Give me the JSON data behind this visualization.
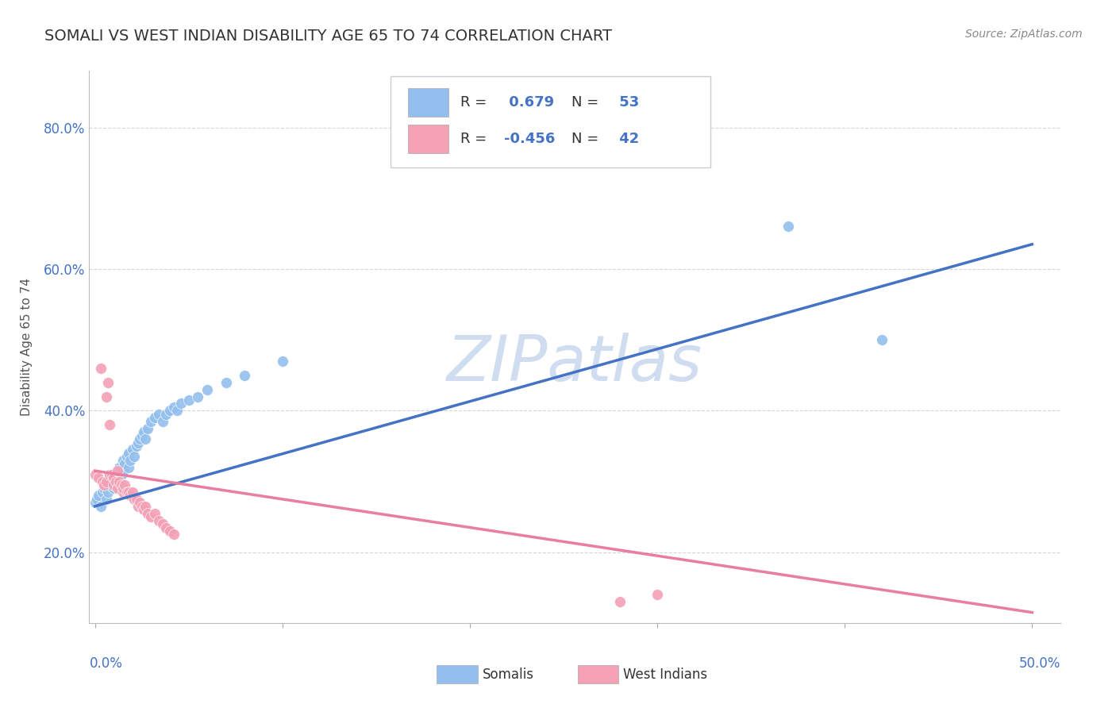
{
  "title": "SOMALI VS WEST INDIAN DISABILITY AGE 65 TO 74 CORRELATION CHART",
  "source_text": "Source: ZipAtlas.com",
  "ylabel": "Disability Age 65 to 74",
  "ylim": [
    0.1,
    0.88
  ],
  "xlim": [
    -0.003,
    0.515
  ],
  "somali_R": 0.679,
  "somali_N": 53,
  "westindian_R": -0.456,
  "westindian_N": 42,
  "somali_color": "#92BFED",
  "westindian_color": "#F4A0B5",
  "somali_line_color": "#4472C4",
  "westindian_line_color": "#E87FA0",
  "watermark_color": "#D0DCF0",
  "background_color": "#FFFFFF",
  "grid_color": "#CCCCCC",
  "title_color": "#333333",
  "source_color": "#888888",
  "somali_x": [
    0.0,
    0.001,
    0.002,
    0.003,
    0.004,
    0.005,
    0.005,
    0.006,
    0.006,
    0.007,
    0.008,
    0.008,
    0.009,
    0.01,
    0.01,
    0.011,
    0.012,
    0.012,
    0.013,
    0.014,
    0.015,
    0.015,
    0.016,
    0.017,
    0.018,
    0.018,
    0.019,
    0.02,
    0.021,
    0.022,
    0.023,
    0.024,
    0.025,
    0.026,
    0.027,
    0.028,
    0.03,
    0.032,
    0.034,
    0.036,
    0.038,
    0.04,
    0.042,
    0.044,
    0.046,
    0.05,
    0.055,
    0.06,
    0.07,
    0.08,
    0.1,
    0.37,
    0.42
  ],
  "somali_y": [
    0.27,
    0.275,
    0.28,
    0.265,
    0.285,
    0.29,
    0.295,
    0.275,
    0.3,
    0.285,
    0.295,
    0.31,
    0.3,
    0.305,
    0.29,
    0.31,
    0.315,
    0.295,
    0.32,
    0.31,
    0.33,
    0.315,
    0.325,
    0.335,
    0.32,
    0.34,
    0.33,
    0.345,
    0.335,
    0.35,
    0.355,
    0.36,
    0.365,
    0.37,
    0.36,
    0.375,
    0.385,
    0.39,
    0.395,
    0.385,
    0.395,
    0.4,
    0.405,
    0.4,
    0.41,
    0.415,
    0.42,
    0.43,
    0.44,
    0.45,
    0.47,
    0.66,
    0.5
  ],
  "westindian_x": [
    0.0,
    0.002,
    0.003,
    0.004,
    0.005,
    0.006,
    0.006,
    0.007,
    0.008,
    0.008,
    0.009,
    0.01,
    0.01,
    0.011,
    0.012,
    0.012,
    0.013,
    0.014,
    0.015,
    0.015,
    0.016,
    0.017,
    0.018,
    0.019,
    0.02,
    0.021,
    0.022,
    0.023,
    0.024,
    0.025,
    0.026,
    0.027,
    0.028,
    0.03,
    0.032,
    0.034,
    0.036,
    0.038,
    0.04,
    0.042,
    0.28,
    0.3
  ],
  "westindian_y": [
    0.31,
    0.305,
    0.46,
    0.3,
    0.295,
    0.42,
    0.3,
    0.44,
    0.31,
    0.38,
    0.31,
    0.305,
    0.295,
    0.3,
    0.315,
    0.29,
    0.3,
    0.295,
    0.285,
    0.29,
    0.295,
    0.285,
    0.285,
    0.28,
    0.285,
    0.275,
    0.275,
    0.265,
    0.27,
    0.265,
    0.26,
    0.265,
    0.255,
    0.25,
    0.255,
    0.245,
    0.24,
    0.235,
    0.23,
    0.225,
    0.13,
    0.14
  ],
  "somali_line_x0": 0.0,
  "somali_line_y0": 0.265,
  "somali_line_x1": 0.5,
  "somali_line_y1": 0.635,
  "wi_line_x0": 0.0,
  "wi_line_y0": 0.315,
  "wi_line_x1": 0.5,
  "wi_line_y1": 0.115
}
